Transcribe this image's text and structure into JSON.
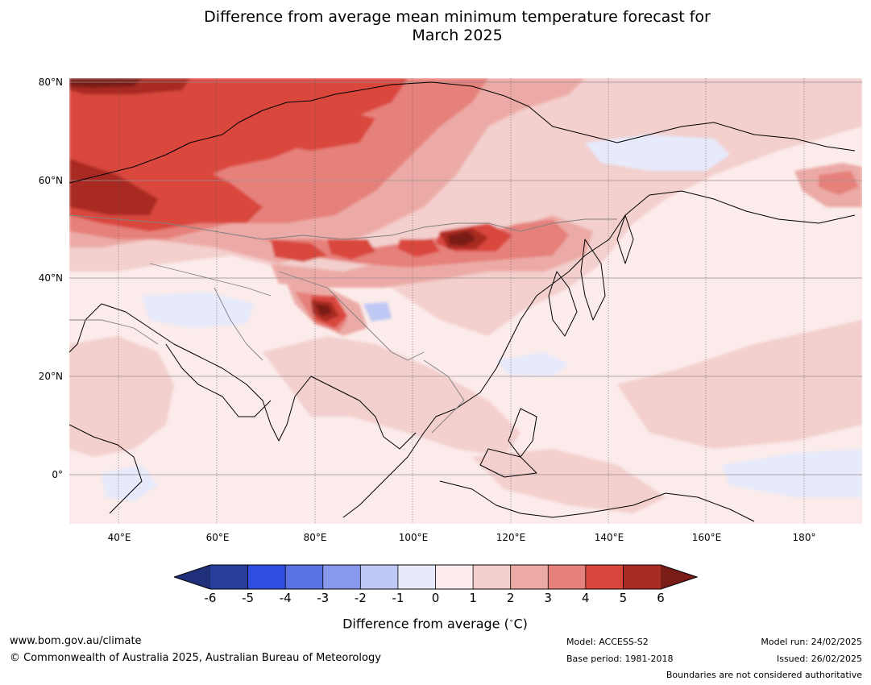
{
  "title": {
    "line1": "Difference from average mean minimum temperature forecast for",
    "line2": "March 2025"
  },
  "map": {
    "latitude_labels": [
      "80°N",
      "60°N",
      "40°N",
      "20°N",
      "0°"
    ],
    "longitude_labels": [
      "40°E",
      "60°E",
      "80°E",
      "100°E",
      "120°E",
      "140°E",
      "160°E",
      "180°"
    ],
    "extent": {
      "lon_min": 30,
      "lon_max": 191,
      "lat_min": -10,
      "lat_max": 80
    }
  },
  "colorbar": {
    "labels": [
      "-6",
      "-5",
      "-4",
      "-3",
      "-2",
      "-1",
      "0",
      "1",
      "2",
      "3",
      "4",
      "5",
      "6"
    ],
    "colors": [
      "#293d9a",
      "#2f4fe0",
      "#5a73e3",
      "#8898ec",
      "#bfc8f5",
      "#e6eafb",
      "#fbebea",
      "#f3cfcd",
      "#ecaaa6",
      "#e6807a",
      "#d9463c",
      "#a92c24"
    ],
    "extend_low_color": "#1f2f7a",
    "extend_high_color": "#7a1c17",
    "title": "Difference from average (",
    "unit": "C)"
  },
  "footer": {
    "website": "www.bom.gov.au/climate",
    "copyright": "© Commonwealth of Australia 2025, Australian Bureau of Meteorology",
    "model": "Model: ACCESS-S2",
    "base_period": "Base period: 1981-2018",
    "model_run": "Model run: 24/02/2025",
    "issued": "Issued: 26/02/2025",
    "disclaimer": "Boundaries are not considered authoritative"
  }
}
